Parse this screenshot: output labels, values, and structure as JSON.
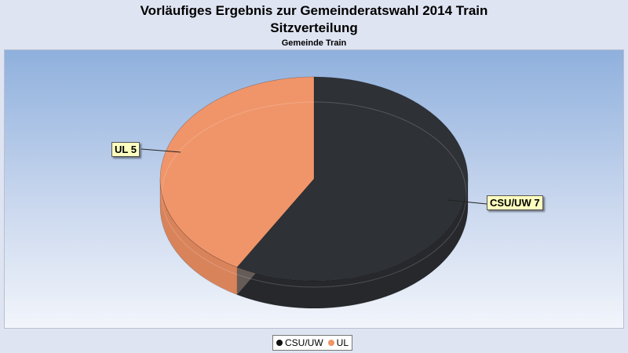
{
  "chart_data": {
    "type": "pie",
    "title": "Vorläufiges Ergebnis zur Gemeinderatswahl 2014 Train",
    "title2": "Sitzverteilung",
    "subtitle": "Gemeinde Train",
    "slices": [
      {
        "name": "CSU/UW",
        "value": 7,
        "label": "CSU/UW 7",
        "color": "#2e3136",
        "side_color": "#26282c"
      },
      {
        "name": "UL",
        "value": 5,
        "label": "UL 5",
        "color": "#f0956a",
        "side_color": "#d9835b"
      }
    ],
    "legend": [
      "CSU/UW",
      "UL"
    ],
    "legend_position": "bottom-center"
  }
}
